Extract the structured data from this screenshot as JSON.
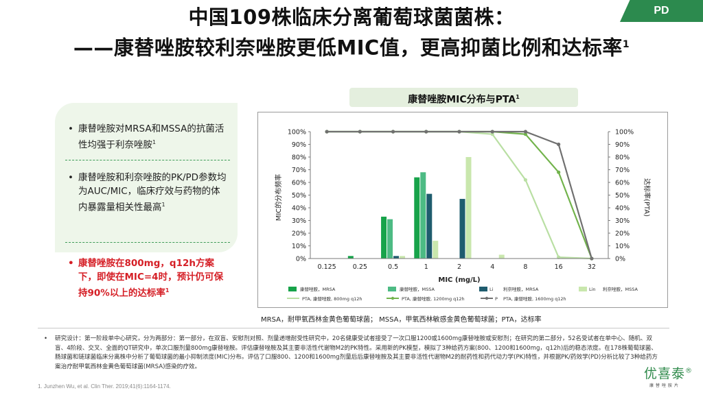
{
  "slide": {
    "title_line1": "中国109株临床分离葡萄球菌菌株：",
    "title_line2": "——康替唑胺较利奈唑胺更低MIC值，更高抑菌比例和达标率",
    "title_sup": "1",
    "tag": "PD"
  },
  "bullets": {
    "b1": "康替唑胺对MRSA和MSSA的抗菌活性均强于利奈唑胺",
    "b1_sup": "1",
    "b2": "康替唑胺和利奈唑胺的PK/PD参数均为AUC/MIC，临床疗效与药物的体内暴露量相关性最高",
    "b2_sup": "1",
    "b3": "康替唑胺在800mg，q12h方案下，即使在MIC=4时，预计仍可保持90%以上的达标率",
    "b3_sup": "1",
    "bullet_char": "•"
  },
  "chart_header": {
    "text": "康替唑胺MIC分布与PTA",
    "sup": "1"
  },
  "chart_data": {
    "type": "bar",
    "categories": [
      "0.125",
      "0.25",
      "0.5",
      "1",
      "2",
      "4",
      "8",
      "16",
      "32"
    ],
    "xlabel": "MIC (mg/L)",
    "ylabel": "MIC的分布频率",
    "y2label": "达标率(PTA)",
    "ylim": [
      0,
      100
    ],
    "y_ticks": [
      "0%",
      "10%",
      "20%",
      "30%",
      "40%",
      "50%",
      "60%",
      "70%",
      "80%",
      "90%",
      "100%"
    ],
    "bar_series": [
      {
        "name": "康替唑胺，MRSA",
        "color": "#17a34a",
        "values": [
          0,
          2,
          33,
          64,
          0,
          0,
          0,
          0,
          0
        ]
      },
      {
        "name": "康替唑胺，MSSA",
        "color": "#4dbb84",
        "values": [
          0,
          0,
          31,
          68,
          0,
          0,
          0,
          0,
          0
        ]
      },
      {
        "name": "利奈唑胺，MRSA",
        "color": "#1f5c6e",
        "values": [
          0,
          0,
          2,
          51,
          47,
          0,
          0,
          0,
          0
        ]
      },
      {
        "name": "利奈唑胺，MSSA",
        "color": "#c9e7ad",
        "values": [
          0,
          0,
          2,
          14,
          80,
          3,
          0,
          0,
          0
        ]
      }
    ],
    "line_series": [
      {
        "name": "PTA, 康替唑胺, 800mg q12h",
        "color": "#b9dfa3",
        "values": [
          100,
          100,
          100,
          100,
          100,
          98,
          62,
          1,
          0
        ]
      },
      {
        "name": "PTA, 康替唑胺, 1200mg q12h",
        "color": "#72b34c",
        "values": [
          100,
          100,
          100,
          100,
          100,
          100,
          98,
          68,
          0
        ]
      },
      {
        "name": "PTA, 康替唑胺, 1600mg q12h",
        "color": "#707070",
        "values": [
          100,
          100,
          100,
          100,
          100,
          100,
          100,
          90,
          0
        ]
      }
    ],
    "legend_labels": [
      "康替唑胺，MRSA",
      "康替唑胺，MSSA",
      "Li",
      "利奈唑胺，MRSA",
      "Lin",
      "利奈唑胺，MSSA",
      "PTA, 康替唑胺, 800mg q12h",
      "PTA, 康替唑胺, 1200mg q12h",
      "P",
      "PTA, 康替唑胺, 1600mg q12h"
    ]
  },
  "abbreviations": "MRSA，耐甲氧西林金黄色葡萄球菌； MSSA，甲氧西林敏感金黄色葡萄球菌；PTA，达标率",
  "study_design": "研究设计：第一阶段单中心研究，分为两部分：第一部分，在双盲、安慰剂对照、剂量递增耐受性研究中，20名健康受试者接受了一次口服1200或1600mg康替唑胺或安慰剂；在研究的第二部分，52名受试者在单中心、随机、双盲、4阶段、交叉、全面的QT研究中，单次口服剂量800mg康替唑胺。评估康替唑胺及其主要非活性代谢物M2的PK特性。采用新的PK模型，模拟了3种给药方案(800、1200和1600mg，q12h)后的稳态浓度。在178株葡萄球菌、肠球菌和链球菌临床分离株中分析了葡萄球菌的最小抑制浓度(MIC)分布。评估了口服800、1200和1600mg剂量后后康替唑胺及其主要非活性代谢物M2的耐药性和药代动力学(PK)特性，并根据PK/药效学(PD)分析比较了3种给药方案治疗耐甲氧西林金黄色葡萄球菌(MRSA)感染的疗效。",
  "reference": "1. Junzhen Wu, et al. Clin Ther. 2019;41(6):1164-1174.",
  "logo": {
    "name": "优喜泰",
    "reg": "®",
    "subtitle": "康替唑胺片"
  }
}
